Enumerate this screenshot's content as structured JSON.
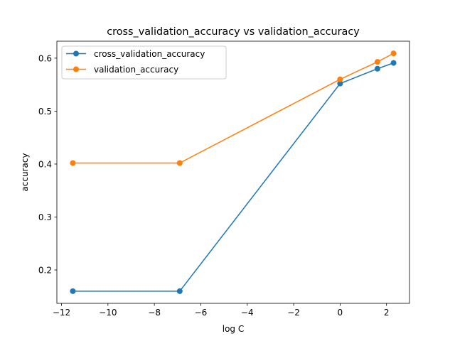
{
  "chart_data": {
    "type": "line",
    "title": "cross_validation_accuracy vs validation_accuracy",
    "xlabel": "log C",
    "ylabel": "accuracy",
    "x": [
      -11.513,
      -6.908,
      0,
      1.609,
      2.303
    ],
    "xlim": [
      -12.2,
      2.99
    ],
    "ylim": [
      0.137,
      0.632
    ],
    "xticks": [
      -12,
      -10,
      -8,
      -6,
      -4,
      -2,
      0,
      2
    ],
    "xtick_labels": [
      "−12",
      "−10",
      "−8",
      "−6",
      "−4",
      "−2",
      "0",
      "2"
    ],
    "yticks": [
      0.2,
      0.3,
      0.4,
      0.5,
      0.6
    ],
    "ytick_labels": [
      "0.2",
      "0.3",
      "0.4",
      "0.5",
      "0.6"
    ],
    "grid": false,
    "legend_position": "top-left",
    "series": [
      {
        "name": "cross_validation_accuracy",
        "color": "#1f77b4",
        "marker": "circle",
        "values": [
          0.16,
          0.16,
          0.552,
          0.58,
          0.591
        ]
      },
      {
        "name": "validation_accuracy",
        "color": "#ff7f0e",
        "marker": "circle",
        "values": [
          0.402,
          0.402,
          0.56,
          0.593,
          0.609
        ]
      }
    ]
  }
}
